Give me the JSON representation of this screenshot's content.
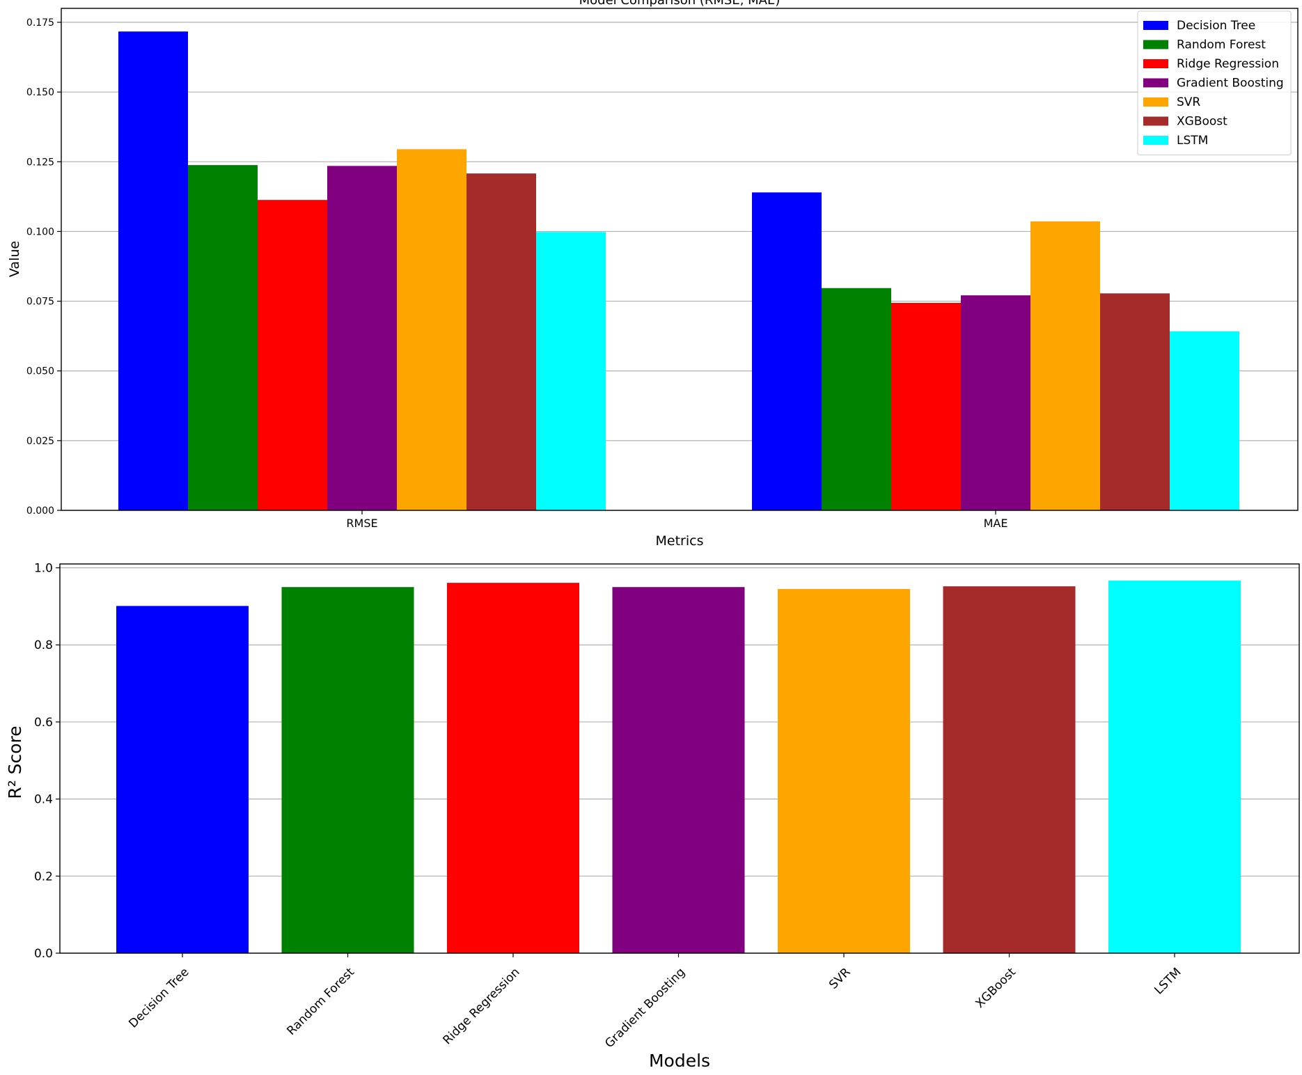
{
  "chart_data": [
    {
      "type": "bar",
      "title": "Model Comparison (RMSE, MAE)",
      "xlabel": "Metrics",
      "ylabel": "Value",
      "ylim": [
        0,
        0.18
      ],
      "yticks": [
        "0.000",
        "0.025",
        "0.050",
        "0.075",
        "0.100",
        "0.125",
        "0.150",
        "0.175"
      ],
      "grid": "horizontal",
      "legend_position": "top-right",
      "categories": [
        "RMSE",
        "MAE"
      ],
      "series": [
        {
          "name": "Decision Tree",
          "color": "#0000ff",
          "values": [
            0.1717,
            0.114
          ]
        },
        {
          "name": "Random Forest",
          "color": "#008000",
          "values": [
            0.1238,
            0.0797
          ]
        },
        {
          "name": "Ridge Regression",
          "color": "#ff0000",
          "values": [
            0.1113,
            0.0744
          ]
        },
        {
          "name": "Gradient Boosting",
          "color": "#800080",
          "values": [
            0.1235,
            0.0771
          ]
        },
        {
          "name": "SVR",
          "color": "#ffa500",
          "values": [
            0.1295,
            0.1036
          ]
        },
        {
          "name": "XGBoost",
          "color": "#a52a2a",
          "values": [
            0.1208,
            0.0778
          ]
        },
        {
          "name": "LSTM",
          "color": "#00ffff",
          "values": [
            0.0998,
            0.0642
          ]
        }
      ]
    },
    {
      "type": "bar",
      "xlabel": "Models",
      "ylabel": "R² Score",
      "ylim": [
        0,
        1.01
      ],
      "yticks": [
        "0.0",
        "0.2",
        "0.4",
        "0.6",
        "0.8",
        "1.0"
      ],
      "grid": "horizontal",
      "categories": [
        "Decision Tree",
        "Random Forest",
        "Ridge Regression",
        "Gradient Boosting",
        "SVR",
        "XGBoost",
        "LSTM"
      ],
      "colors": [
        "#0000ff",
        "#008000",
        "#ff0000",
        "#800080",
        "#ffa500",
        "#a52a2a",
        "#00ffff"
      ],
      "values": [
        0.901,
        0.95,
        0.961,
        0.95,
        0.945,
        0.952,
        0.967
      ]
    }
  ]
}
